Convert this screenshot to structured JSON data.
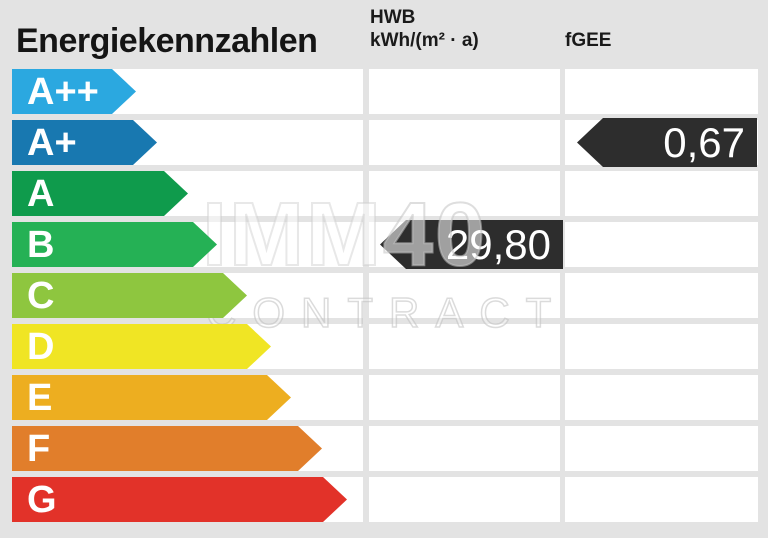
{
  "title": "Energiekennzahlen",
  "header": {
    "hwb_label": "HWB",
    "hwb_unit": "kWh/(m² · a)",
    "fgee_label": "fGEE"
  },
  "scale": {
    "classes": [
      {
        "label": "A++",
        "color": "#2ba8e0",
        "arrow_width": 124
      },
      {
        "label": "A+",
        "color": "#1878b0",
        "arrow_width": 145
      },
      {
        "label": "A",
        "color": "#0f9b4c",
        "arrow_width": 176
      },
      {
        "label": "B",
        "color": "#25b155",
        "arrow_width": 205
      },
      {
        "label": "C",
        "color": "#8ec63f",
        "arrow_width": 235
      },
      {
        "label": "D",
        "color": "#f0e524",
        "arrow_width": 259
      },
      {
        "label": "E",
        "color": "#edae20",
        "arrow_width": 279
      },
      {
        "label": "F",
        "color": "#e17e2b",
        "arrow_width": 310
      },
      {
        "label": "G",
        "color": "#e23229",
        "arrow_width": 335
      }
    ]
  },
  "markers": {
    "hwb": {
      "value": "29,80",
      "energy_class": "B",
      "row_index": 3,
      "color": "#2d2d2d"
    },
    "fgee": {
      "value": "0,67",
      "energy_class": "A+",
      "row_index": 1,
      "color": "#2d2d2d"
    }
  },
  "watermark": {
    "line1_outline": "IMM",
    "line1_filled": "40",
    "line2": "CONTRACT"
  },
  "colors": {
    "background": "#e3e3e3",
    "row_background": "#ffffff",
    "marker": "#2d2d2d",
    "text": "#1a1a1a",
    "marker_text": "#ffffff"
  },
  "chart_data": {
    "type": "bar",
    "title": "Energiekennzahlen",
    "categories": [
      "A++",
      "A+",
      "A",
      "B",
      "C",
      "D",
      "E",
      "F",
      "G"
    ],
    "category_colors": [
      "#2ba8e0",
      "#1878b0",
      "#0f9b4c",
      "#25b155",
      "#8ec63f",
      "#f0e524",
      "#edae20",
      "#e17e2b",
      "#e23229"
    ],
    "series": [
      {
        "name": "HWB kWh/(m² · a)",
        "value": 29.8,
        "rating": "B"
      },
      {
        "name": "fGEE",
        "value": 0.67,
        "rating": "A+"
      }
    ],
    "legend_position": "top",
    "orientation": "horizontal"
  }
}
